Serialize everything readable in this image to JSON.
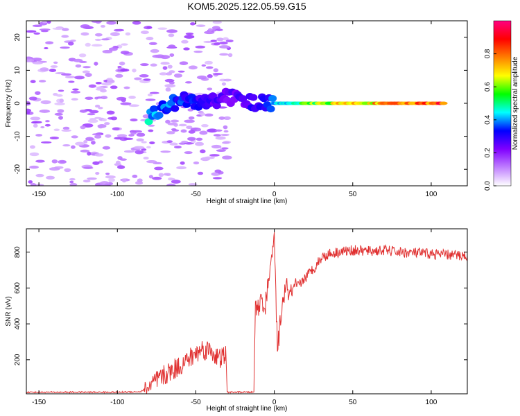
{
  "title": "KOM5.2025.122.05.59.G15",
  "chart_data": [
    {
      "type": "heatmap",
      "xlabel": "Height of straight line (km)",
      "ylabel": "Frequency (Hz)",
      "xlim": [
        -158,
        123
      ],
      "ylim": [
        -25,
        25
      ],
      "xticks": [
        -150,
        -100,
        -50,
        0,
        50,
        100
      ],
      "yticks": [
        -20,
        -10,
        0,
        10,
        20
      ],
      "grid": false,
      "colorbar": {
        "label": "Normalized spectral amplitude",
        "range": [
          0,
          1
        ],
        "ticks": [
          0.0,
          0.2,
          0.4,
          0.6,
          0.8
        ],
        "colormap": [
          "#ffffff",
          "#c080ff",
          "#8000ff",
          "#0000ff",
          "#00ffff",
          "#00ff00",
          "#ffff00",
          "#ff8000",
          "#ff0000",
          "#ff0080"
        ]
      },
      "description_points": [
        {
          "x": -80,
          "f": -4,
          "amp": 0.45
        },
        {
          "x": -60,
          "f": 1,
          "amp": 0.35
        },
        {
          "x": -45,
          "f": 0,
          "amp": 0.3
        },
        {
          "x": -30,
          "f": 2,
          "amp": 0.25
        },
        {
          "x": -10,
          "f": 0,
          "amp": 0.3
        },
        {
          "x": 10,
          "f": 0,
          "amp": 0.5
        },
        {
          "x": 40,
          "f": 0,
          "amp": 0.7
        },
        {
          "x": 70,
          "f": 0,
          "amp": 0.75
        },
        {
          "x": 110,
          "f": 0,
          "amp": 0.9
        }
      ]
    },
    {
      "type": "line",
      "xlabel": "Height of straight line (km)",
      "ylabel": "SNR (v/v)",
      "xlim": [
        -158,
        123
      ],
      "ylim": [
        10,
        930
      ],
      "yticks": [
        200,
        400,
        600,
        800
      ],
      "xticks": [
        -150,
        -100,
        -50,
        0,
        50,
        100
      ],
      "grid": false,
      "series": [
        {
          "color": "#e03030",
          "x": [
            -158,
            -130,
            -100,
            -85,
            -78,
            -72,
            -65,
            -58,
            -52,
            -46,
            -40,
            -35,
            -31,
            -30,
            -20,
            -13,
            -12,
            -10,
            -8,
            -6,
            -4,
            -2,
            0,
            2,
            4,
            6,
            8,
            10,
            14,
            18,
            22,
            26,
            30,
            35,
            40,
            50,
            60,
            70,
            80,
            90,
            100,
            110,
            123
          ],
          "y": [
            15,
            15,
            15,
            18,
            60,
            100,
            140,
            180,
            220,
            260,
            250,
            200,
            230,
            15,
            15,
            15,
            520,
            480,
            560,
            470,
            620,
            740,
            890,
            250,
            420,
            560,
            600,
            560,
            600,
            640,
            680,
            720,
            770,
            790,
            800,
            810,
            805,
            810,
            800,
            795,
            790,
            785,
            780
          ]
        }
      ]
    }
  ]
}
